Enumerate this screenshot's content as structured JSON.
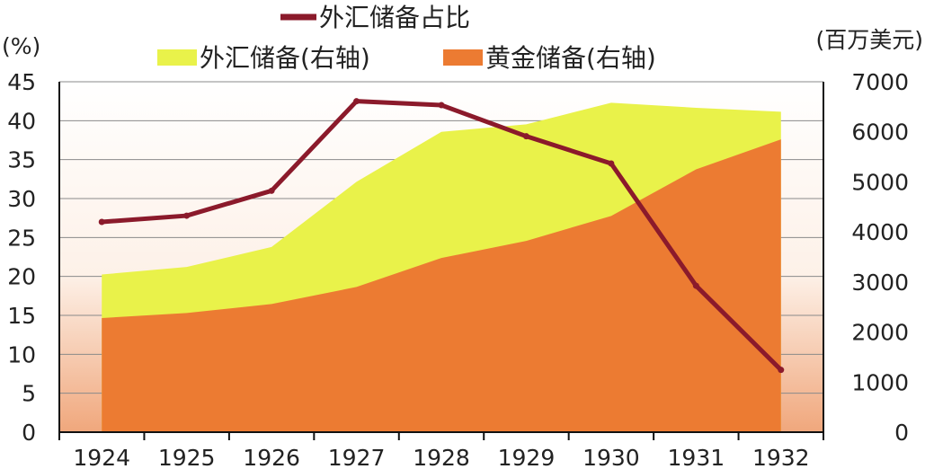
{
  "chart_data": {
    "type": "area",
    "categories": [
      "1924",
      "1925",
      "1926",
      "1927",
      "1928",
      "1929",
      "1930",
      "1931",
      "1932"
    ],
    "series": [
      {
        "name": "外汇储备占比",
        "axis": "left",
        "kind": "line",
        "color": "#8b1a2b",
        "values": [
          27,
          27.8,
          31,
          42.5,
          42,
          38,
          34.5,
          18.8,
          8
        ]
      },
      {
        "name": "外汇储备(右轴)",
        "axis": "right",
        "kind": "area",
        "color": "#e9f24a",
        "values": [
          3150,
          3300,
          3700,
          5000,
          6000,
          6150,
          6580,
          6480,
          6400
        ]
      },
      {
        "name": "黄金储备(右轴)",
        "axis": "right",
        "kind": "area",
        "color": "#ec7b32",
        "values": [
          2280,
          2380,
          2560,
          2900,
          3480,
          3820,
          4320,
          5250,
          5850
        ]
      }
    ],
    "ylabel_left": "(%)",
    "ylabel_right": "(百万美元)",
    "ylim_left": [
      0,
      45
    ],
    "ylim_right": [
      0,
      7000
    ],
    "yticks_left": [
      "45",
      "40",
      "35",
      "30",
      "25",
      "20",
      "15",
      "10",
      "5",
      "0"
    ],
    "yticks_right": [
      "7000",
      "6000",
      "5000",
      "4000",
      "3000",
      "2000",
      "1000",
      "0"
    ],
    "grid": true,
    "legend_position": "top"
  }
}
